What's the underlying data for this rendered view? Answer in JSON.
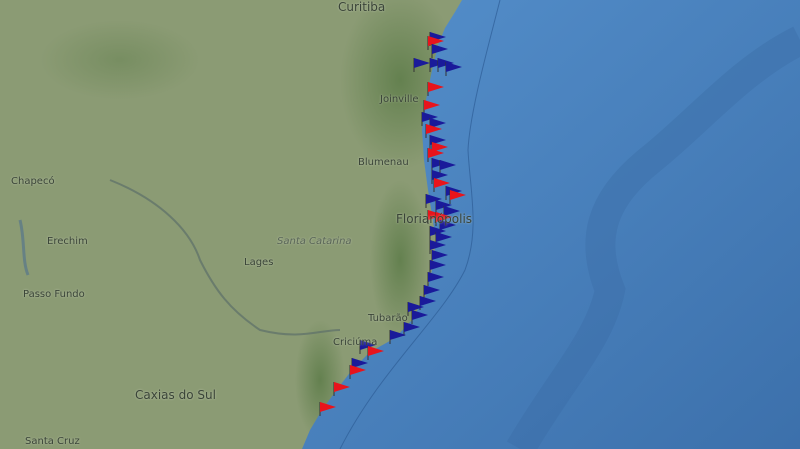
{
  "map": {
    "colors": {
      "land": "#8a9a72",
      "forest": "#5f7f4f",
      "ocean": "#4f86c4",
      "deep_ocean": "#3f74b0",
      "marker_red": "#e8141c",
      "marker_blue": "#1a1a9a"
    },
    "labels": {
      "curitiba": "Curitiba",
      "joinville": "Joinville",
      "blumenau": "Blumenau",
      "florianopolis": "Florianópolis",
      "chapeco": "Chapecó",
      "erechim": "Erechim",
      "santa_catarina": "Santa Catarina",
      "lages": "Lages",
      "passo_fundo": "Passo Fundo",
      "tubarao": "Tubarão",
      "criciuma": "Criciúma",
      "caxias_do_sul": "Caxias do Sul",
      "santa_cruz": "Santa Cruz"
    },
    "marker_types": [
      "red-flag",
      "blue-flag"
    ]
  }
}
